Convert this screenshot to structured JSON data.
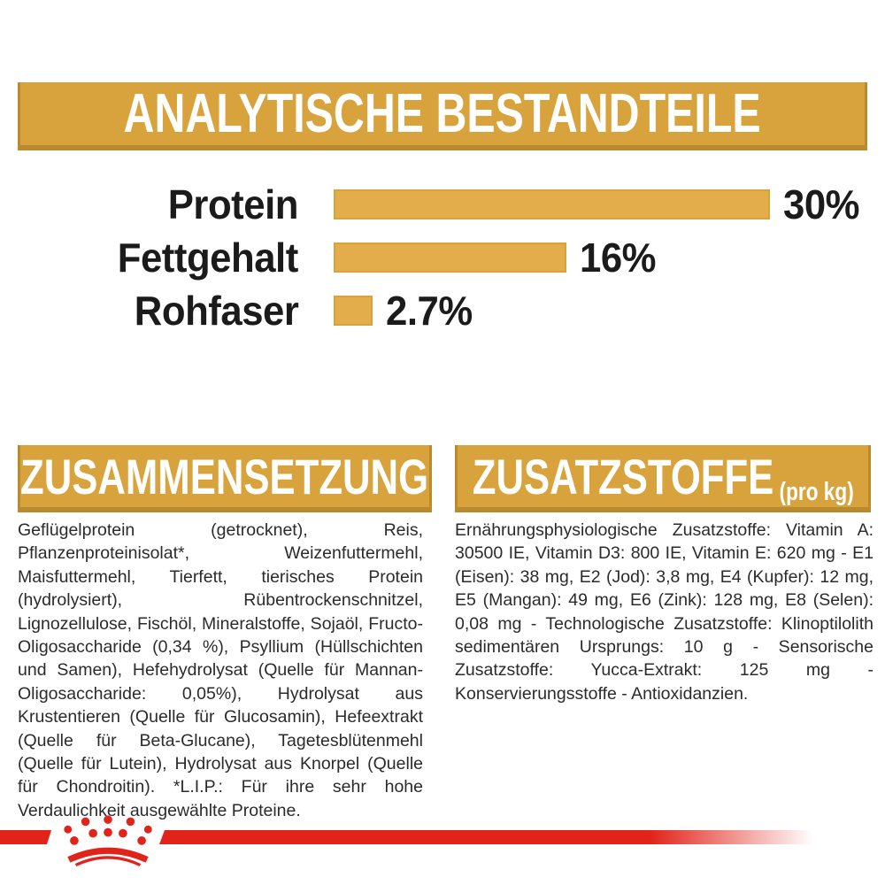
{
  "header": {
    "title": "ANALYTISCHE BESTANDTEILE"
  },
  "chart_data": {
    "type": "bar",
    "orientation": "horizontal",
    "title": "ANALYTISCHE BESTANDTEILE",
    "categories": [
      "Protein",
      "Fettgehalt",
      "Rohfaser"
    ],
    "values": [
      30,
      16,
      2.7
    ],
    "value_labels": [
      "30%",
      "16%",
      "2.7%"
    ],
    "xlim": [
      0,
      30
    ],
    "grid": false,
    "legend": false,
    "bar_color": "#E2AD4A"
  },
  "composition": {
    "title": "ZUSAMMENSETZUNG",
    "body": "Geflügelprotein (getrocknet), Reis, Pflanzenproteinisolat*, Weizenfuttermehl, Maisfuttermehl, Tierfett, tierisches Protein (hydrolysiert), Rübentrockenschnitzel, Lignozellulose, Fischöl, Mineralstoffe, Sojaöl, Fructo-Oligosaccharide (0,34 %), Psyllium (Hüllschichten und Samen), Hefehydrolysat (Quelle für Mannan-Oligosaccharide: 0,05%), Hydrolysat aus Krustentieren (Quelle für Glucosamin), Hefeextrakt (Quelle für Beta-Glucane), Tagetesblütenmehl (Quelle für Lutein), Hydrolysat aus Knorpel (Quelle für Chondroitin). *L.I.P.: Für ihre sehr hohe Verdaulichkeit ausgewählte Proteine."
  },
  "additives": {
    "title": "ZUSATZSTOFFE",
    "unit": "(pro kg)",
    "body": "Ernährungsphysiologische Zusatzstoffe: Vitamin A: 30500 IE, Vitamin D3: 800 IE, Vitamin E: 620 mg - E1 (Eisen): 38 mg, E2 (Jod): 3,8 mg, E4 (Kupfer): 12 mg, E5 (Mangan): 49 mg, E6 (Zink): 128 mg, E8 (Selen): 0,08 mg - Technologische Zusatzstoffe: Klinoptilolith sedimentären Ursprungs: 10 g - Sensorische Zusatzstoffe: Yucca-Extrakt: 125 mg - Konservierungsstoffe - Antioxidanzien."
  },
  "footer": {
    "brand_icon": "royal-canin-crown"
  },
  "colors": {
    "gold": "#D8A33C",
    "gold-dark": "#BA8A2E",
    "bar-gold": "#E2AD4A",
    "red": "#E2231A",
    "ink": "#1B1B1B",
    "body-ink": "#2B2B2B",
    "bg": "#FFFFFF"
  }
}
